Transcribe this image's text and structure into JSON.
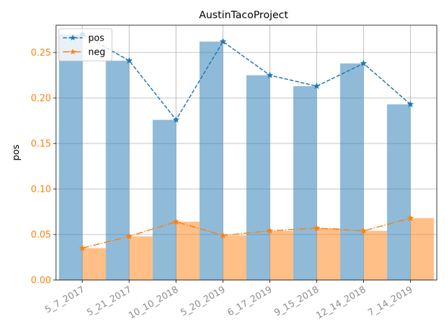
{
  "chart_data": {
    "type": "bar",
    "title": "AustinTacoProject",
    "xlabel": "",
    "ylabel": "pos",
    "ylim": [
      0,
      0.28
    ],
    "yticks": [
      "0.00",
      "0.05",
      "0.10",
      "0.15",
      "0.20",
      "0.25"
    ],
    "grid": true,
    "legend_position": "upper-left",
    "categories": [
      "5_7_2017",
      "5_21_2017",
      "10_10_2018",
      "5_20_2019",
      "6_17_2019",
      "9_15_2018",
      "12_14_2018",
      "7_14_2019"
    ],
    "series": [
      {
        "name": "pos",
        "values": [
          0.27,
          0.241,
          0.176,
          0.262,
          0.225,
          0.213,
          0.238,
          0.193
        ],
        "bar_color": "#1f77b4",
        "line_color": "#1f77b4",
        "line_style": "dashed",
        "marker": "star"
      },
      {
        "name": "neg",
        "values": [
          0.035,
          0.048,
          0.064,
          0.049,
          0.054,
          0.057,
          0.054,
          0.068
        ],
        "bar_color": "#ff7f0e",
        "line_color": "#ff7f0e",
        "line_style": "dashdot",
        "marker": "star"
      }
    ],
    "xtick_color": "#8c8c8c",
    "ytick_color": "#ff7f0e"
  }
}
